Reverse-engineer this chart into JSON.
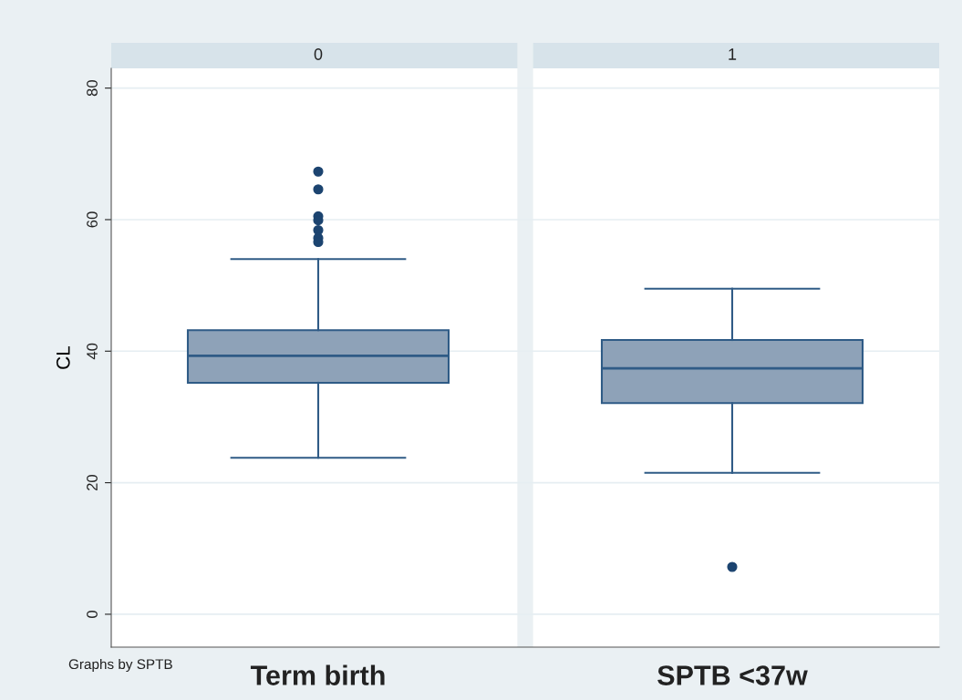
{
  "chart_data": {
    "type": "box",
    "ylabel": "CL",
    "categories": [
      "Term birth",
      "SPTB <37w"
    ],
    "ylim": [
      -5,
      83
    ],
    "yticks": [
      0,
      20,
      40,
      60,
      80
    ],
    "grid": "y",
    "annotations": [
      "0",
      "1",
      "Graphs by SPTB"
    ],
    "series": [
      {
        "color": "#8ea2b8",
        "boxes": [
          {
            "low": 23.8,
            "q1": 35.2,
            "median": 39.3,
            "q3": 43.2,
            "high": 54.0,
            "outliers": [
              67.3,
              64.6,
              60.5,
              59.9,
              58.4,
              57.2,
              56.6
            ]
          },
          {
            "low": 21.5,
            "q1": 32.1,
            "median": 37.4,
            "q3": 41.7,
            "high": 49.5,
            "outliers": [
              7.2
            ]
          }
        ]
      }
    ]
  }
}
